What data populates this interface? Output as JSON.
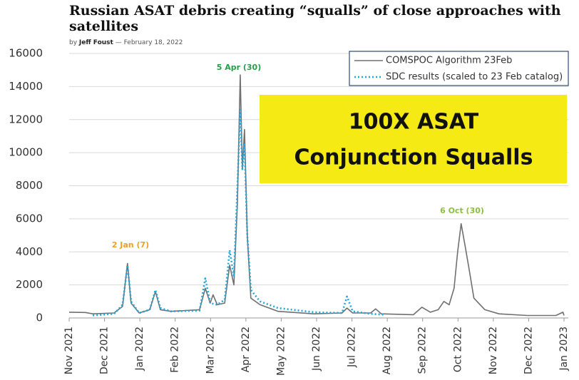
{
  "header": {
    "title": "Russian ASAT debris creating “squalls” of close approaches with satellites",
    "byline": {
      "prefix": "by",
      "author": "Jeff Foust",
      "separator": "—",
      "date": "February 18, 2022"
    }
  },
  "chart_data": {
    "type": "line",
    "ylim": [
      0,
      16000
    ],
    "yticks": [
      0,
      2000,
      4000,
      6000,
      8000,
      10000,
      12000,
      14000,
      16000
    ],
    "xlim": [
      0,
      14
    ],
    "xticks": [
      {
        "value": 0,
        "label": "Nov 2021"
      },
      {
        "value": 1,
        "label": "Dec 2021"
      },
      {
        "value": 2,
        "label": "Jan 2022"
      },
      {
        "value": 3,
        "label": "Feb 2022"
      },
      {
        "value": 4,
        "label": "Mar 2022"
      },
      {
        "value": 5,
        "label": "Apr 2022"
      },
      {
        "value": 6,
        "label": "May 2022"
      },
      {
        "value": 7,
        "label": "Jun 2022"
      },
      {
        "value": 8,
        "label": "Jul 2022"
      },
      {
        "value": 9,
        "label": "Aug 2022"
      },
      {
        "value": 10,
        "label": "Sep 2022"
      },
      {
        "value": 11,
        "label": "Oct 2022"
      },
      {
        "value": 12,
        "label": "Nov 2022"
      },
      {
        "value": 13,
        "label": "Dec 2022"
      },
      {
        "value": 14,
        "label": "Jan 2023"
      }
    ],
    "grid": true,
    "legend": "top-right",
    "series": [
      {
        "name": "COMSPOC Algorithm 23Feb",
        "color": "#707070",
        "style": "solid",
        "x": [
          0,
          0.46,
          0.67,
          1.27,
          1.51,
          1.65,
          1.75,
          1.98,
          2.28,
          2.44,
          2.58,
          2.88,
          3.69,
          3.85,
          3.99,
          4.07,
          4.19,
          4.4,
          4.54,
          4.66,
          4.76,
          4.84,
          4.9,
          4.96,
          5.04,
          5.14,
          5.4,
          5.91,
          6.92,
          7.72,
          7.86,
          8.02,
          8.53,
          8.67,
          8.83,
          9.74,
          9.98,
          10.22,
          10.44,
          10.6,
          10.75,
          10.89,
          10.99,
          11.09,
          11.19,
          11.31,
          11.45,
          11.76,
          12.16,
          12.96,
          13.77,
          13.97,
          14
        ],
        "values": [
          350,
          330,
          250,
          300,
          700,
          3300,
          900,
          300,
          500,
          1600,
          500,
          400,
          500,
          1800,
          900,
          1400,
          800,
          900,
          3200,
          2000,
          7000,
          14700,
          9000,
          11400,
          5000,
          1200,
          800,
          400,
          250,
          300,
          600,
          300,
          300,
          550,
          250,
          200,
          650,
          350,
          500,
          1000,
          800,
          1800,
          4000,
          5700,
          4500,
          3000,
          1200,
          500,
          250,
          150,
          150,
          350,
          150
        ]
      },
      {
        "name": "SDC results (scaled to 23 Feb catalog)",
        "color": "#1fa7e0",
        "style": "dotted",
        "x": [
          0.67,
          1.27,
          1.51,
          1.65,
          1.75,
          1.98,
          2.28,
          2.44,
          2.58,
          2.88,
          3.69,
          3.85,
          3.99,
          4.19,
          4.4,
          4.54,
          4.66,
          4.76,
          4.84,
          4.9,
          4.96,
          5.04,
          5.14,
          5.4,
          5.91,
          6.92,
          7.72,
          7.86,
          8.02,
          8.53,
          8.93
        ],
        "values": [
          150,
          250,
          800,
          3200,
          1000,
          300,
          500,
          1700,
          600,
          400,
          450,
          2400,
          900,
          800,
          1100,
          4100,
          2500,
          8000,
          12600,
          9000,
          10500,
          5000,
          1700,
          1000,
          600,
          350,
          300,
          1300,
          400,
          250,
          200
        ]
      }
    ],
    "annotations": [
      {
        "text": "5 Apr (30)",
        "color": "#22a04a"
      },
      {
        "text": "2 Jan (7)",
        "color": "#f0a020"
      },
      {
        "text": "6 Oct (30)",
        "color": "#8cc040"
      }
    ],
    "callout": {
      "lines": [
        "100X ASAT",
        "Conjunction Squalls"
      ],
      "color": "#f5ea14"
    }
  }
}
